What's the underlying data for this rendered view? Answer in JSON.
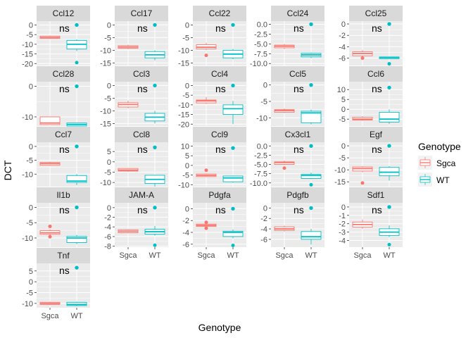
{
  "chart_data": {
    "type": "boxplot",
    "facet_layout": "wrap, 5 columns, free y scales",
    "xlabel": "Genotype",
    "ylabel": "DCT",
    "categories": [
      "Sgca",
      "WT"
    ],
    "significance_label": "ns",
    "legend": {
      "title": "Genotype",
      "placement": "right",
      "entries": [
        {
          "name": "Sgca",
          "color": "#F8766D"
        },
        {
          "name": "WT",
          "color": "#00BFC4"
        }
      ]
    },
    "colors": {
      "Sgca": "#F8766D",
      "WT": "#00BFC4",
      "panel_bg": "#EBEBEB",
      "strip_bg": "#D9D9D9",
      "grid": "#FFFFFF"
    },
    "panels": [
      {
        "name": "Ccl12",
        "ylim": [
          -21,
          2
        ],
        "yticks": [
          0,
          -5,
          -10,
          -15,
          -20
        ],
        "ytick_labels": [
          "0",
          "-5",
          "-10",
          "-15",
          "-20"
        ],
        "groups": {
          "Sgca": {
            "q1": -7,
            "median": -6.5,
            "q3": -5.8,
            "min": -7.2,
            "max": -5.5,
            "outliers": []
          },
          "WT": {
            "q1": -12.5,
            "median": -10,
            "q3": -8,
            "min": -13.5,
            "max": -7.5,
            "outliers": [
              -19.5
            ]
          }
        },
        "mean_point": 0
      },
      {
        "name": "Ccl17",
        "ylim": [
          -16,
          1.5
        ],
        "yticks": [
          0,
          -5,
          -10,
          -15
        ],
        "ytick_labels": [
          "0",
          "-5",
          "-10",
          "-15"
        ],
        "groups": {
          "Sgca": {
            "q1": -9.2,
            "median": -8.7,
            "q3": -8.2,
            "min": -9.5,
            "max": -7.8,
            "outliers": []
          },
          "WT": {
            "q1": -13,
            "median": -11.8,
            "q3": -10.5,
            "min": -14,
            "max": -10,
            "outliers": []
          }
        },
        "mean_point": 0
      },
      {
        "name": "Ccl22",
        "ylim": [
          -16,
          1.5
        ],
        "yticks": [
          0,
          -5,
          -10,
          -15
        ],
        "ytick_labels": [
          "0",
          "-5",
          "-10",
          "-15"
        ],
        "groups": {
          "Sgca": {
            "q1": -9.5,
            "median": -8.8,
            "q3": -7.8,
            "min": -10,
            "max": -7,
            "outliers": [
              -12
            ]
          },
          "WT": {
            "q1": -13,
            "median": -11.5,
            "q3": -10,
            "min": -13.5,
            "max": -9.5,
            "outliers": []
          }
        },
        "mean_point": 0
      },
      {
        "name": "Ccl24",
        "ylim": [
          -10.5,
          0.8
        ],
        "yticks": [
          0,
          -2.5,
          -5,
          -7.5,
          -10
        ],
        "ytick_labels": [
          "0.0",
          "-2.5",
          "-5.0",
          "-7.5",
          "-10.0"
        ],
        "groups": {
          "Sgca": {
            "q1": -6,
            "median": -5.6,
            "q3": -5.3,
            "min": -6.3,
            "max": -5,
            "outliers": []
          },
          "WT": {
            "q1": -8.3,
            "median": -7.8,
            "q3": -7.4,
            "min": -8.6,
            "max": -7.2,
            "outliers": []
          }
        },
        "mean_point": 0
      },
      {
        "name": "Ccl25",
        "ylim": [
          -7.3,
          0.5
        ],
        "yticks": [
          0,
          -2,
          -4,
          -6
        ],
        "ytick_labels": [
          "0",
          "-2",
          "-4",
          "-6"
        ],
        "groups": {
          "Sgca": {
            "q1": -5.6,
            "median": -5.2,
            "q3": -4.9,
            "min": -5.8,
            "max": -4.6,
            "outliers": [
              -6
            ]
          },
          "WT": {
            "q1": -6.1,
            "median": -5.9,
            "q3": -5.8,
            "min": -6.1,
            "max": -5.8,
            "outliers": [
              -7
            ]
          }
        },
        "mean_point": 0
      },
      {
        "name": "Ccl28",
        "ylim": [
          -13,
          1.5
        ],
        "yticks": [
          0,
          -10
        ],
        "ytick_labels": [
          "0",
          "-10"
        ],
        "groups": {
          "Sgca": {
            "q1": -12.5,
            "median": -12,
            "q3": -10,
            "min": -12.5,
            "max": -10,
            "outliers": []
          },
          "WT": {
            "q1": -13,
            "median": -12.5,
            "q3": -12,
            "min": -13,
            "max": -12,
            "outliers": []
          }
        },
        "mean_point": 0
      },
      {
        "name": "Ccl3",
        "ylim": [
          -16,
          1.5
        ],
        "yticks": [
          0,
          -5,
          -10,
          -15
        ],
        "ytick_labels": [
          "0",
          "-5",
          "-10",
          "-15"
        ],
        "groups": {
          "Sgca": {
            "q1": -8.5,
            "median": -7.5,
            "q3": -6.8,
            "min": -9,
            "max": -6,
            "outliers": []
          },
          "WT": {
            "q1": -14,
            "median": -12.5,
            "q3": -11,
            "min": -15,
            "max": -10,
            "outliers": []
          }
        },
        "mean_point": 0
      },
      {
        "name": "Ccl4",
        "ylim": [
          -21,
          2
        ],
        "yticks": [
          0,
          -5,
          -10,
          -15,
          -20
        ],
        "ytick_labels": [
          "0",
          "-5",
          "-10",
          "-15",
          "-20"
        ],
        "groups": {
          "Sgca": {
            "q1": -9,
            "median": -8,
            "q3": -7.5,
            "min": -9.5,
            "max": -6,
            "outliers": []
          },
          "WT": {
            "q1": -15,
            "median": -12,
            "q3": -10,
            "min": -20,
            "max": -8,
            "outliers": []
          }
        },
        "mean_point": 0
      },
      {
        "name": "Ccl5",
        "ylim": [
          -12.5,
          1
        ],
        "yticks": [
          0,
          -5,
          -10
        ],
        "ytick_labels": [
          "0",
          "-5",
          "-10"
        ],
        "groups": {
          "Sgca": {
            "q1": -8.3,
            "median": -7.8,
            "q3": -7.5,
            "min": -8.5,
            "max": -7.2,
            "outliers": []
          },
          "WT": {
            "q1": -11.5,
            "median": -8.5,
            "q3": -8,
            "min": -12,
            "max": -7.5,
            "outliers": []
          }
        },
        "mean_point": 0
      },
      {
        "name": "Ccl6",
        "ylim": [
          -8.5,
          14
        ],
        "yticks": [
          10,
          5,
          0,
          -5
        ],
        "ytick_labels": [
          "10",
          "5",
          "0",
          "-5"
        ],
        "groups": {
          "Sgca": {
            "q1": -5.5,
            "median": -5,
            "q3": -4,
            "min": -5.8,
            "max": -3.5,
            "outliers": []
          },
          "WT": {
            "q1": -6.5,
            "median": -5,
            "q3": -1.5,
            "min": -7.5,
            "max": 0,
            "outliers": []
          }
        },
        "mean_point": 11
      },
      {
        "name": "Ccl7",
        "ylim": [
          -14.5,
          1.5
        ],
        "yticks": [
          0,
          -5,
          -10
        ],
        "ytick_labels": [
          "0",
          "-5",
          "-10"
        ],
        "groups": {
          "Sgca": {
            "q1": -6.8,
            "median": -6.2,
            "q3": -5.8,
            "min": -7,
            "max": -5.5,
            "outliers": []
          },
          "WT": {
            "q1": -13,
            "median": -12.5,
            "q3": -10.5,
            "min": -14,
            "max": -10,
            "outliers": []
          }
        },
        "mean_point": 0
      },
      {
        "name": "Ccl8",
        "ylim": [
          -12,
          9.5
        ],
        "yticks": [
          5,
          0,
          -5,
          -10
        ],
        "ytick_labels": [
          "5",
          "0",
          "-5",
          "-10"
        ],
        "groups": {
          "Sgca": {
            "q1": -4.5,
            "median": -4,
            "q3": -3.2,
            "min": -4.8,
            "max": -3,
            "outliers": []
          },
          "WT": {
            "q1": -10.5,
            "median": -8.5,
            "q3": -6.5,
            "min": -12,
            "max": -6.5,
            "outliers": []
          }
        },
        "mean_point": 7
      },
      {
        "name": "Ccl9",
        "ylim": [
          -11,
          12
        ],
        "yticks": [
          10,
          5,
          0,
          -5,
          -10
        ],
        "ytick_labels": [
          "10",
          "5",
          "0",
          "-5",
          "-10"
        ],
        "groups": {
          "Sgca": {
            "q1": -5.8,
            "median": -5.2,
            "q3": -4.5,
            "min": -6,
            "max": -4.2,
            "outliers": [
              -2.5
            ]
          },
          "WT": {
            "q1": -8.5,
            "median": -6.5,
            "q3": -5.5,
            "min": -9,
            "max": -5.5,
            "outliers": []
          }
        },
        "mean_point": 9
      },
      {
        "name": "Cx3cl1",
        "ylim": [
          -11,
          1
        ],
        "yticks": [
          0,
          -2.5,
          -5,
          -7.5,
          -10
        ],
        "ytick_labels": [
          "0.0",
          "-2.5",
          "-5.0",
          "-7.5",
          "-10.0"
        ],
        "groups": {
          "Sgca": {
            "q1": -5,
            "median": -4.5,
            "q3": -4.3,
            "min": -5.2,
            "max": -4,
            "outliers": [
              -6
            ]
          },
          "WT": {
            "q1": -8.8,
            "median": -8,
            "q3": -7.7,
            "min": -9,
            "max": -7.2,
            "outliers": [
              -10.5
            ]
          }
        },
        "mean_point": 0
      },
      {
        "name": "Egf",
        "ylim": [
          -17,
          1.5
        ],
        "yticks": [
          0,
          -5,
          -10,
          -15
        ],
        "ytick_labels": [
          "0",
          "-5",
          "-10",
          "-15"
        ],
        "groups": {
          "Sgca": {
            "q1": -10.5,
            "median": -9.5,
            "q3": -8.8,
            "min": -11,
            "max": -8.5,
            "outliers": [
              -15.5
            ]
          },
          "WT": {
            "q1": -12.5,
            "median": -11,
            "q3": -9,
            "min": -14.5,
            "max": -8.5,
            "outliers": []
          }
        },
        "mean_point": 0
      },
      {
        "name": "Il1b",
        "ylim": [
          -13,
          1.5
        ],
        "yticks": [
          0,
          -5,
          -10
        ],
        "ytick_labels": [
          "0",
          "-5",
          "-10"
        ],
        "groups": {
          "Sgca": {
            "q1": -8.8,
            "median": -8.3,
            "q3": -7.6,
            "min": -9.2,
            "max": -7.2,
            "outliers": [
              -6.2,
              -9.6
            ]
          },
          "WT": {
            "q1": -11.5,
            "median": -10,
            "q3": -9.5,
            "min": -12,
            "max": -9,
            "outliers": []
          }
        },
        "mean_point": 0
      },
      {
        "name": "JAM-A",
        "ylim": [
          -8.2,
          1
        ],
        "yticks": [
          0,
          -2,
          -4,
          -6,
          -8
        ],
        "ytick_labels": [
          "0",
          "-2",
          "-4",
          "-6",
          "-8"
        ],
        "groups": {
          "Sgca": {
            "q1": -5.2,
            "median": -4.9,
            "q3": -4.6,
            "min": -5.3,
            "max": -4.5,
            "outliers": []
          },
          "WT": {
            "q1": -5.5,
            "median": -5,
            "q3": -4.5,
            "min": -5.8,
            "max": -3.8,
            "outliers": [
              -7.8
            ]
          }
        },
        "mean_point": 0
      },
      {
        "name": "Pdgfa",
        "ylim": [
          -6.5,
          1
        ],
        "yticks": [
          0,
          -2,
          -4,
          -6
        ],
        "ytick_labels": [
          "0",
          "-2",
          "-4",
          "-6"
        ],
        "groups": {
          "Sgca": {
            "q1": -3,
            "median": -2.8,
            "q3": -2.6,
            "min": -3.2,
            "max": -2.4,
            "outliers": [
              -2.3,
              -3.3
            ]
          },
          "WT": {
            "q1": -4.7,
            "median": -4,
            "q3": -3.8,
            "min": -5,
            "max": -3.5,
            "outliers": [
              -6.2
            ]
          }
        },
        "mean_point": 0
      },
      {
        "name": "Pdgfb",
        "ylim": [
          -7.5,
          1
        ],
        "yticks": [
          0,
          -2,
          -4,
          -6
        ],
        "ytick_labels": [
          "0",
          "-2",
          "-4",
          "-6"
        ],
        "groups": {
          "Sgca": {
            "q1": -4.3,
            "median": -4,
            "q3": -3.6,
            "min": -4.5,
            "max": -3.4,
            "outliers": []
          },
          "WT": {
            "q1": -6,
            "median": -5.5,
            "q3": -4.5,
            "min": -7,
            "max": -4,
            "outliers": []
          }
        },
        "mean_point": 0
      },
      {
        "name": "Sdf1",
        "ylim": [
          -4.8,
          0.5
        ],
        "yticks": [
          0,
          -1,
          -2,
          -3,
          -4
        ],
        "ytick_labels": [
          "0",
          "-1",
          "-2",
          "-3",
          "-4"
        ],
        "groups": {
          "Sgca": {
            "q1": -2.4,
            "median": -2.1,
            "q3": -1.8,
            "min": -2.6,
            "max": -1.5,
            "outliers": []
          },
          "WT": {
            "q1": -3.4,
            "median": -3,
            "q3": -2.6,
            "min": -3.6,
            "max": -2.2,
            "outliers": [
              -4.5
            ]
          }
        },
        "mean_point": 0
      },
      {
        "name": "Tnf",
        "ylim": [
          -12,
          8.5
        ],
        "yticks": [
          5,
          0,
          -5,
          -10
        ],
        "ytick_labels": [
          "5",
          "0",
          "-5",
          "-10"
        ],
        "groups": {
          "Sgca": {
            "q1": -10.5,
            "median": -10,
            "q3": -9.5,
            "min": -10.8,
            "max": -9.2,
            "outliers": []
          },
          "WT": {
            "q1": -11,
            "median": -10.5,
            "q3": -9.5,
            "min": -11.3,
            "max": -9.2,
            "outliers": []
          }
        },
        "mean_point": 6.5
      }
    ]
  }
}
